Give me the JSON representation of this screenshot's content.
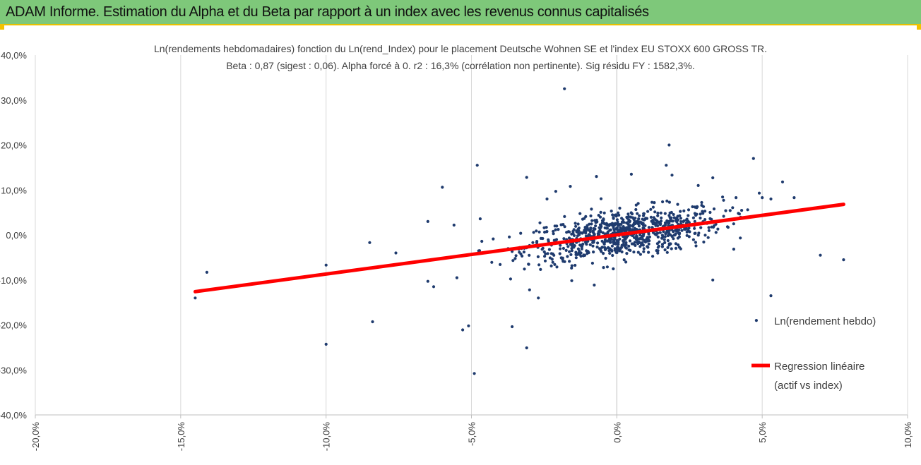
{
  "banner": {
    "title": "ADAM Informe. Estimation du Alpha et du Beta par rapport à un index avec les revenus connus capitalisés",
    "background": "#7ec87a",
    "accent": "#f2c200"
  },
  "chart_data": {
    "type": "scatter",
    "title": "Ln(rendements hebdomadaires) fonction du Ln(rend_Index) pour le placement Deutsche Wohnen SE et l'index EU STOXX 600 GROSS TR.",
    "subtitle": "Beta : 0,87 (sigest : 0,06). Alpha forcé à 0. r2 : 16,3% (corrélation non pertinente). Sig résidu FY : 1582,3%.",
    "xlim": [
      -0.2,
      0.1
    ],
    "ylim": [
      -0.4,
      0.4
    ],
    "x_ticks": [
      -0.2,
      -0.15,
      -0.1,
      -0.05,
      0,
      0.05,
      0.1
    ],
    "x_tick_labels": [
      "-20,0%",
      "-15,0%",
      "-10,0%",
      "-5,0%",
      "0,0%",
      "5,0%",
      "10,0%"
    ],
    "y_ticks": [
      0.4,
      0.3,
      0.2,
      0.1,
      0,
      -0.1,
      -0.2,
      -0.3,
      -0.4
    ],
    "y_tick_labels": [
      "40,0%",
      "30,0%",
      "20,0%",
      "10,0%",
      "0,0%",
      "-10,0%",
      "-20,0%",
      "-30,0%",
      "-40,0%"
    ],
    "grid": "vertical",
    "legend_position": "right",
    "series": [
      {
        "name": "Ln(rendement hebdo)",
        "kind": "scatter",
        "color": "#1f3b6e",
        "note": "~900 weekly points clustered near the origin; listed points are the visible outliers",
        "points": [
          [
            -0.145,
            -0.14
          ],
          [
            -0.141,
            -0.083
          ],
          [
            -0.1,
            -0.243
          ],
          [
            -0.1,
            -0.067
          ],
          [
            -0.085,
            -0.017
          ],
          [
            -0.084,
            -0.193
          ],
          [
            -0.076,
            -0.04
          ],
          [
            -0.065,
            -0.103
          ],
          [
            -0.065,
            0.03
          ],
          [
            -0.063,
            -0.115
          ],
          [
            -0.06,
            0.106
          ],
          [
            -0.056,
            0.022
          ],
          [
            -0.055,
            -0.095
          ],
          [
            -0.053,
            -0.211
          ],
          [
            -0.051,
            -0.202
          ],
          [
            -0.049,
            -0.308
          ],
          [
            -0.048,
            0.155
          ],
          [
            -0.047,
            0.036
          ],
          [
            -0.036,
            -0.204
          ],
          [
            -0.031,
            -0.251
          ],
          [
            -0.031,
            0.128
          ],
          [
            -0.03,
            -0.122
          ],
          [
            -0.027,
            -0.14
          ],
          [
            -0.024,
            0.08
          ],
          [
            -0.021,
            0.097
          ],
          [
            -0.018,
            0.325
          ],
          [
            -0.016,
            0.108
          ],
          [
            -0.007,
            0.13
          ],
          [
            0.005,
            0.135
          ],
          [
            0.017,
            0.155
          ],
          [
            0.019,
            0.133
          ],
          [
            0.018,
            0.2
          ],
          [
            0.028,
            0.11
          ],
          [
            0.033,
            0.127
          ],
          [
            0.033,
            -0.1
          ],
          [
            0.041,
            0.083
          ],
          [
            0.045,
            0.056
          ],
          [
            0.047,
            0.17
          ],
          [
            0.048,
            -0.19
          ],
          [
            0.049,
            0.093
          ],
          [
            0.053,
            -0.135
          ],
          [
            0.053,
            0.08
          ],
          [
            0.057,
            0.118
          ],
          [
            0.061,
            0.083
          ],
          [
            0.07,
            -0.045
          ],
          [
            0.078,
            -0.055
          ],
          [
            0.05,
            0.083
          ]
        ]
      },
      {
        "name": "Regression linéaire",
        "name_line2": "(actif vs index)",
        "kind": "line",
        "color": "#ff0000",
        "x": [
          -0.145,
          0.078
        ],
        "y": [
          -0.126,
          0.068
        ]
      }
    ]
  }
}
